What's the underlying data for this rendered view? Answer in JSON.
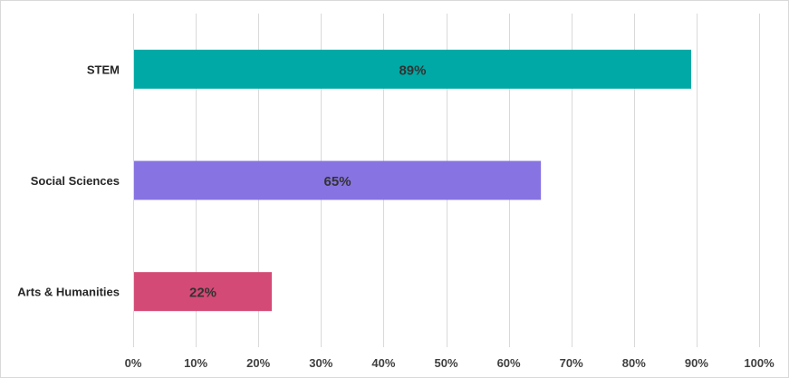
{
  "chart_data": {
    "type": "bar",
    "orientation": "horizontal",
    "title": "",
    "xlabel": "",
    "ylabel": "",
    "categories": [
      "STEM",
      "Social Sciences",
      "Arts & Humanities"
    ],
    "values": [
      89,
      65,
      22
    ],
    "data_labels": [
      "89%",
      "65%",
      "22%"
    ],
    "bar_colors": [
      "#00a9a5",
      "#8773e1",
      "#d44a76"
    ],
    "xlim": [
      0,
      100
    ],
    "x_ticks": [
      0,
      10,
      20,
      30,
      40,
      50,
      60,
      70,
      80,
      90,
      100
    ],
    "x_tick_labels": [
      "0%",
      "10%",
      "20%",
      "30%",
      "40%",
      "50%",
      "60%",
      "70%",
      "80%",
      "90%",
      "100%"
    ],
    "grid": "vertical",
    "legend": "none",
    "grid_color": "#d9d9d9"
  }
}
